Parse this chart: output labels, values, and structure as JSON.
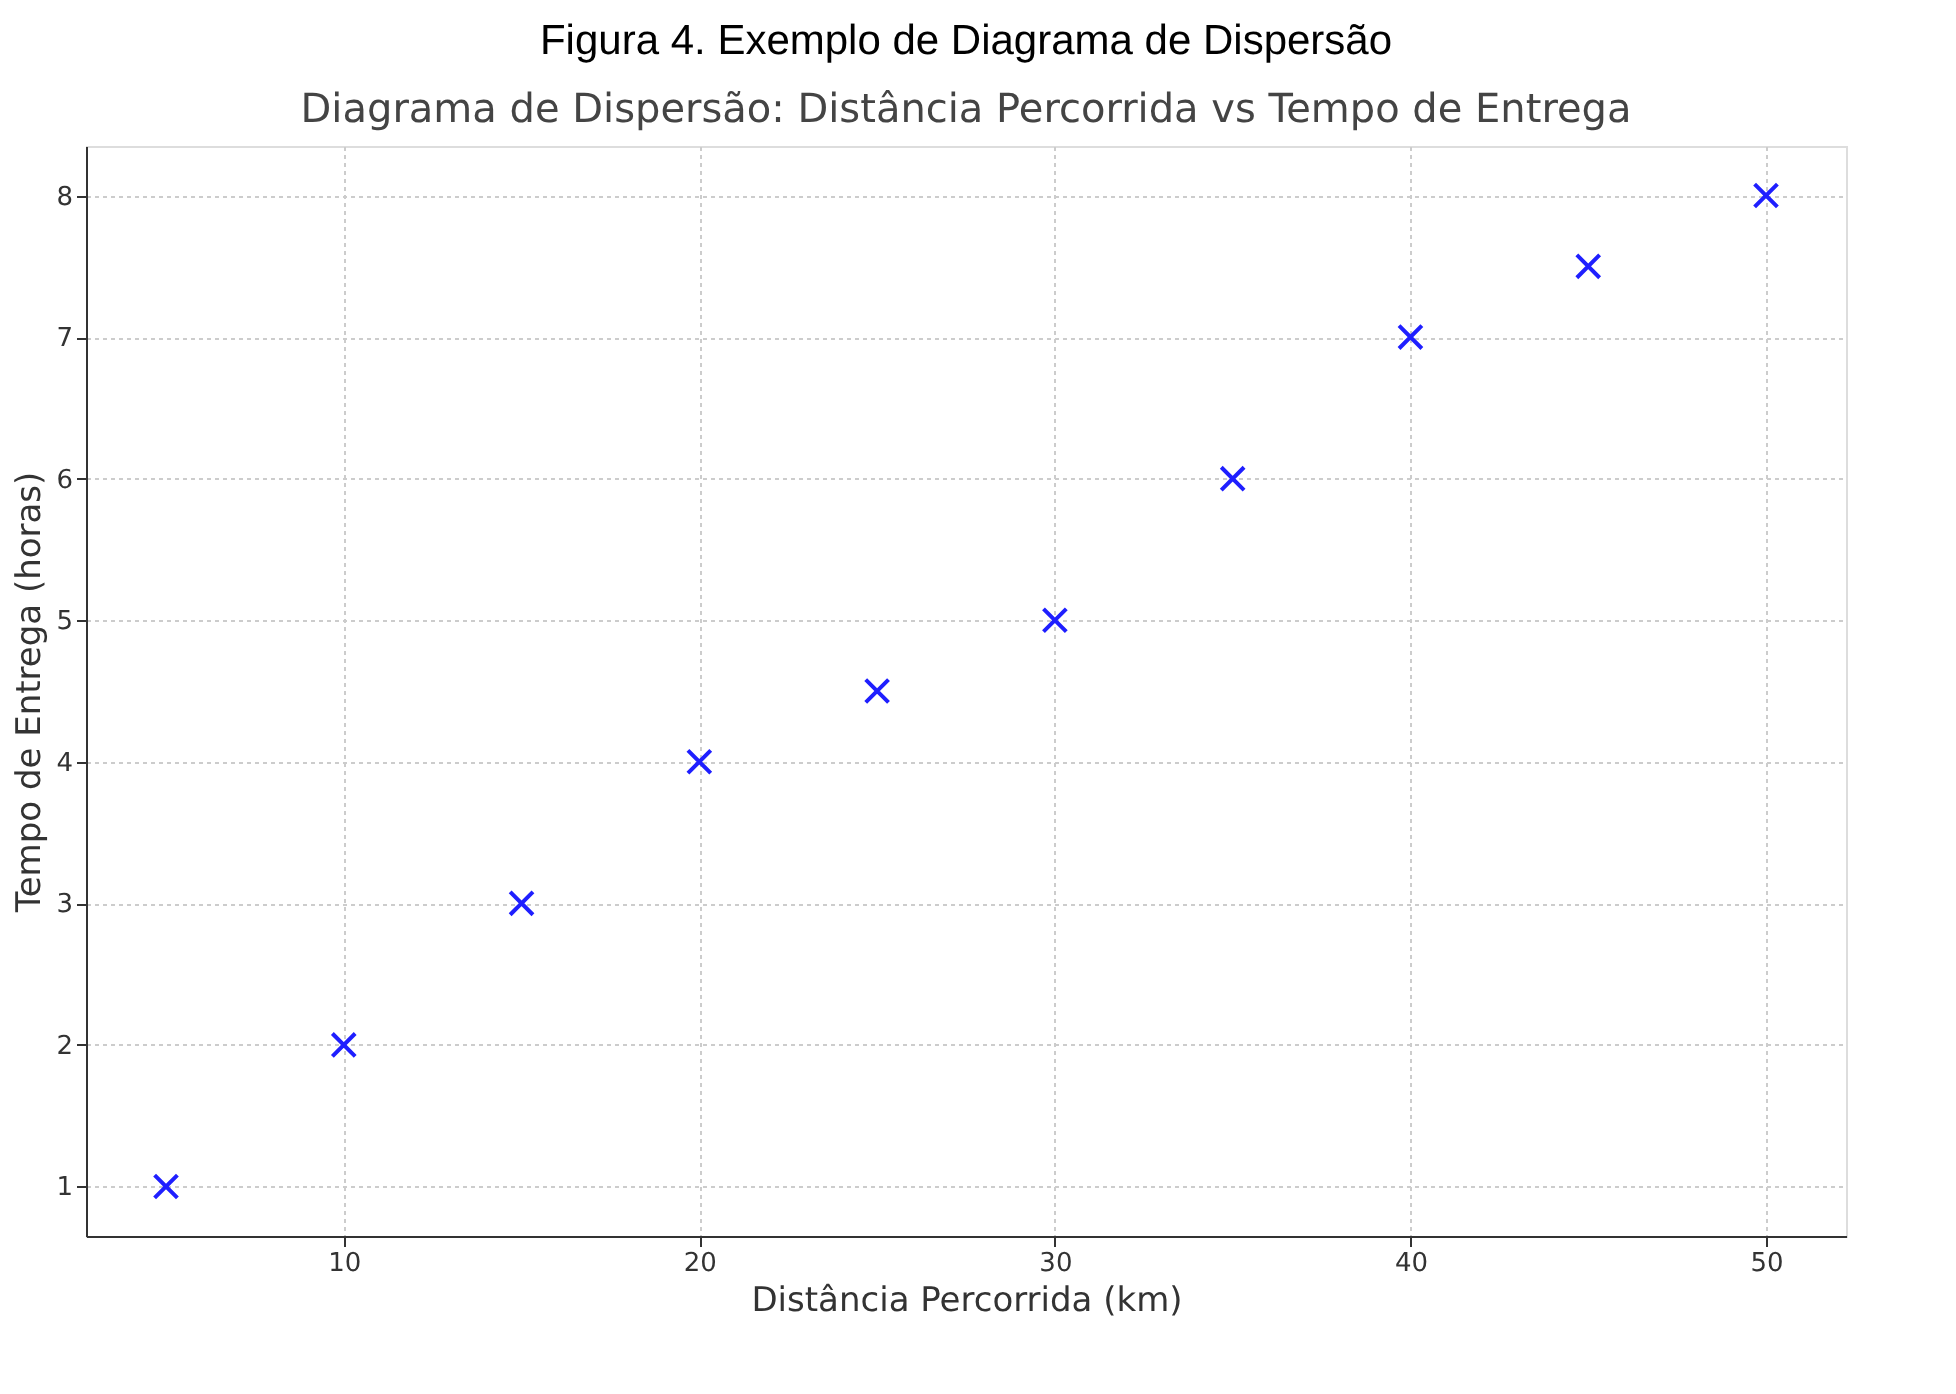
{
  "chart_data": {
    "type": "scatter",
    "title": "Figura 4. Exemplo de Diagrama de Dispersão",
    "subtitle": "Diagrama de Dispersão: Distância Percorrida vs Tempo de Entrega",
    "xlabel": "Distância Percorrida (km)",
    "ylabel": "Tempo de Entrega (horas)",
    "x": [
      5,
      10,
      15,
      20,
      25,
      30,
      35,
      40,
      45,
      50
    ],
    "series": [
      {
        "color": "#1f1fff",
        "values": [
          1,
          2,
          3,
          4,
          4.5,
          5,
          6,
          7,
          7.5,
          8
        ]
      }
    ],
    "xlim": [
      2.75,
      52.25
    ],
    "xticks": [
      10,
      20,
      30,
      40,
      50
    ],
    "ylim": [
      0.65,
      8.35
    ],
    "yticks": [
      1,
      2,
      3,
      4,
      5,
      6,
      7,
      8
    ],
    "grid": true,
    "marker": "cross"
  }
}
